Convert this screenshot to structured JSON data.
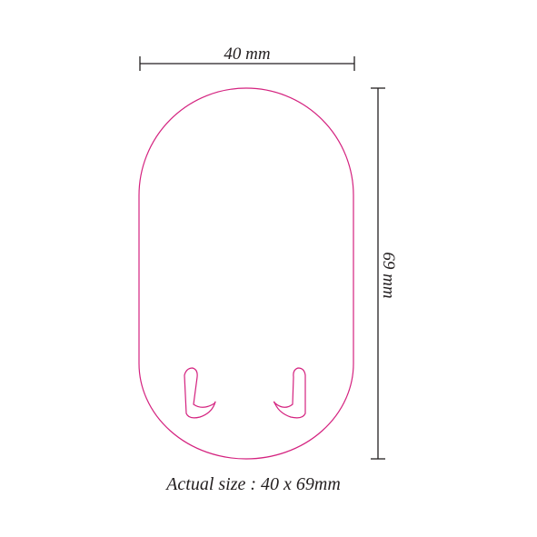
{
  "colors": {
    "outline": "#d4227f",
    "dimension": "#231f20",
    "background": "#ffffff"
  },
  "dimensions": {
    "width_label": "40 mm",
    "height_label": "69 mm"
  },
  "caption": "Actual size : 40 x 69mm"
}
